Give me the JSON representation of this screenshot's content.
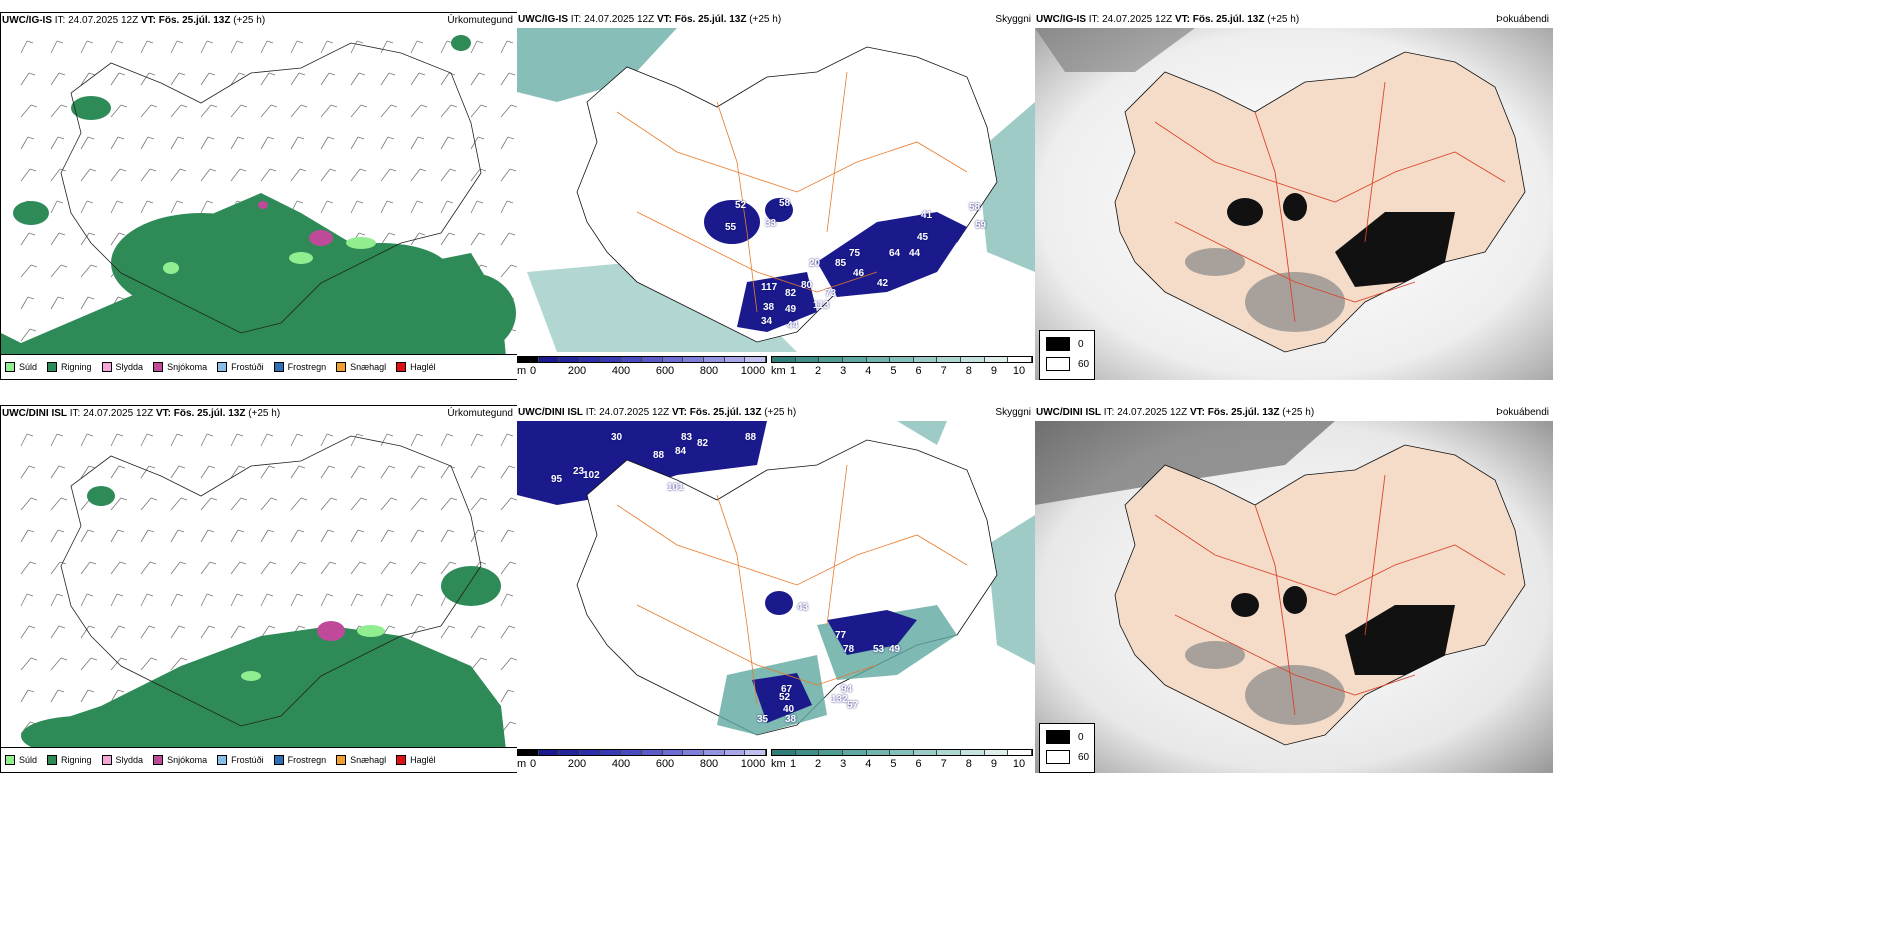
{
  "panels": {
    "p1": {
      "left": "UWC/IG-IS",
      "left_rest": " IT: 24.07.2025 12Z ",
      "vt": "VT: Fös. 25.júl. 13Z",
      "lead": " (+25 h)",
      "right": "Úrkomutegund"
    },
    "p2": {
      "left": "UWC/IG-IS",
      "left_rest": " IT: 24.07.2025 12Z ",
      "vt": "VT: Fös. 25.júl. 13Z",
      "lead": " (+25 h)",
      "right": "Skyggni"
    },
    "p3": {
      "left": "UWC/IG-IS",
      "left_rest": " IT: 24.07.2025 12Z ",
      "vt": "VT: Fös. 25.júl. 13Z",
      "lead": " (+25 h)",
      "right": "Þokuábendi"
    },
    "p4": {
      "left": "UWC/DINI ISL",
      "left_rest": " IT: 24.07.2025 12Z ",
      "vt": "VT: Fös. 25.júl. 13Z",
      "lead": " (+25 h)",
      "right": "Úrkomutegund"
    },
    "p5": {
      "left": "UWC/DINI ISL",
      "left_rest": " IT: 24.07.2025 12Z ",
      "vt": "VT: Fös. 25.júl. 13Z",
      "lead": " (+25 h)",
      "right": "Skyggni"
    },
    "p6": {
      "left": "UWC/DINI ISL",
      "left_rest": " IT: 24.07.2025 12Z ",
      "vt": "VT: Fös. 25.júl. 13Z",
      "lead": " (+25 h)",
      "right": "Þokuábendi"
    }
  },
  "precip_legend": [
    {
      "label": "Súld",
      "color": "#90ee90"
    },
    {
      "label": "Rigning",
      "color": "#2e8b57"
    },
    {
      "label": "Slydda",
      "color": "#f4a6d7"
    },
    {
      "label": "Snjókoma",
      "color": "#c04a9a"
    },
    {
      "label": "Frostúði",
      "color": "#87bfe8"
    },
    {
      "label": "Frostregn",
      "color": "#2f6db5"
    },
    {
      "label": "Snæhagl",
      "color": "#f0a030"
    },
    {
      "label": "Haglél",
      "color": "#e01010"
    }
  ],
  "vis_scale_m": {
    "unit": "m",
    "ticks": [
      "0",
      "200",
      "400",
      "600",
      "800",
      "1000"
    ]
  },
  "vis_scale_km": {
    "unit": "km",
    "ticks": [
      "1",
      "2",
      "3",
      "4",
      "5",
      "6",
      "7",
      "8",
      "9",
      "10"
    ]
  },
  "fog_legend": {
    "dark": "0",
    "light": "60"
  },
  "vis_labels_top": [
    "52",
    "58",
    "55",
    "33",
    "41",
    "45",
    "64",
    "44",
    "20",
    "85",
    "75",
    "46",
    "117",
    "82",
    "80",
    "73",
    "113",
    "49",
    "42",
    "34",
    "44",
    "38",
    "59",
    "58"
  ],
  "vis_labels_bottom": [
    "30",
    "83",
    "82",
    "88",
    "84",
    "88",
    "95",
    "23",
    "102",
    "101",
    "43",
    "77",
    "78",
    "53",
    "49",
    "67",
    "94",
    "57",
    "40",
    "132",
    "38",
    "35",
    "52"
  ],
  "colors": {
    "rain": "#2e8b57",
    "land": "#f5dcc8",
    "roads": "#e87a2c",
    "vis_dark": "#1a1a8c",
    "vis_teal": "#5fa8a0"
  }
}
